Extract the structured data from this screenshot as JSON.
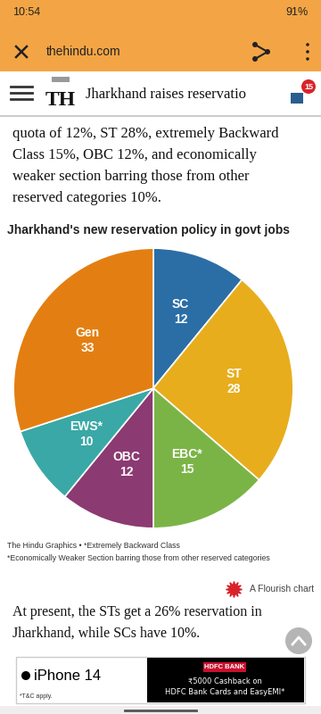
{
  "status_bar": {
    "time": "10:54",
    "battery": "91%"
  },
  "browser": {
    "url": "thehindu.com"
  },
  "header": {
    "logo": "TH",
    "title": "Jharkhand raises reservatio",
    "notifications": "15"
  },
  "article": {
    "text_before": [
      "quota of 12%, ST 28%, extremely Backward",
      "Class 15%, OBC 12%, and economically",
      "weaker section barring those from other",
      "reserved categories 10%."
    ],
    "text_after": [
      "At present, the STs get a 26% reservation in",
      "Jharkhand, while SCs have 10%."
    ]
  },
  "chart_data": {
    "type": "pie",
    "title": "Jharkhand's new reservation policy in govt jobs",
    "categories": [
      "SC",
      "ST",
      "EBC*",
      "OBC",
      "EWS*",
      "Gen"
    ],
    "values": [
      12,
      28,
      15,
      12,
      10,
      33
    ],
    "colors": [
      "#2b6ea6",
      "#e8ad1c",
      "#7bb446",
      "#8c3a72",
      "#3aa8a6",
      "#e37f12"
    ],
    "data_labels": true,
    "notes": [
      "The Hindu Graphics • *Extremely Backward Class",
      "*Economically Weaker Section barring those from other reserved categories"
    ],
    "credit": "A Flourish chart"
  },
  "ad": {
    "product": "iPhone 14",
    "terms": "*T&C apply.",
    "bank": "HDFC BANK",
    "offer": [
      "₹5000 Cashback on",
      "HDFC Bank Cards and EasyEMI*"
    ]
  }
}
